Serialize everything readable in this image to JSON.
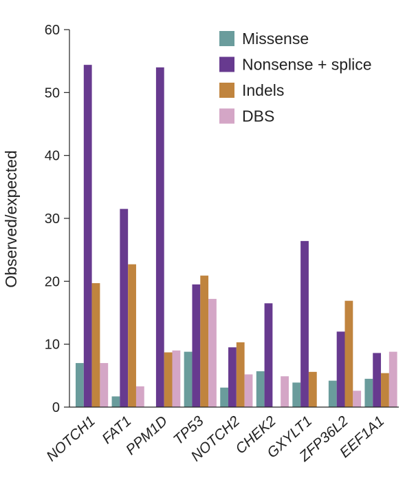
{
  "chart_data": {
    "type": "bar",
    "title": "",
    "xlabel": "",
    "ylabel": "Observed/expected",
    "ylim": [
      0,
      60
    ],
    "yticks": [
      0,
      10,
      20,
      30,
      40,
      50,
      60
    ],
    "grid": false,
    "legend_position": "top-right",
    "categories": [
      "NOTCH1",
      "FAT1",
      "PPM1D",
      "TP53",
      "NOTCH2",
      "CHEK2",
      "GXYLT1",
      "ZFP36L2",
      "EEF1A1"
    ],
    "series": [
      {
        "name": "Missense",
        "color": "#6a9c9c",
        "values": [
          7.0,
          1.7,
          null,
          8.8,
          3.1,
          5.7,
          3.9,
          4.2,
          4.5
        ]
      },
      {
        "name": "Nonsense + splice",
        "color": "#673a8f",
        "values": [
          54.4,
          31.5,
          54.0,
          19.5,
          9.5,
          16.5,
          26.4,
          12.0,
          8.6
        ]
      },
      {
        "name": "Indels",
        "color": "#c0843e",
        "values": [
          19.7,
          22.7,
          8.7,
          20.9,
          10.3,
          null,
          5.6,
          16.9,
          5.4
        ]
      },
      {
        "name": "DBS",
        "color": "#d4a6c6",
        "values": [
          7.0,
          3.3,
          9.0,
          17.2,
          5.2,
          4.9,
          null,
          2.6,
          8.8
        ]
      }
    ]
  }
}
